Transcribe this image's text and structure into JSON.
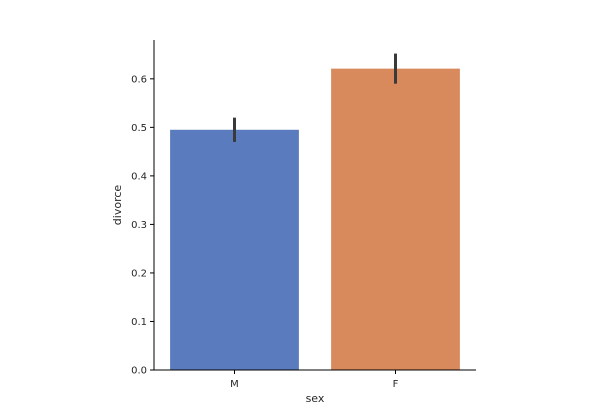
{
  "chart_data": {
    "type": "bar",
    "title": "",
    "xlabel": "sex",
    "ylabel": "divorce",
    "categories": [
      "M",
      "F"
    ],
    "values": [
      0.495,
      0.621
    ],
    "error_low": [
      0.47,
      0.59
    ],
    "error_high": [
      0.52,
      0.652
    ],
    "ylim": [
      0,
      0.68
    ],
    "yticks": [
      0.0,
      0.1,
      0.2,
      0.3,
      0.4,
      0.5,
      0.6
    ],
    "ytick_labels": [
      "0.0",
      "0.1",
      "0.2",
      "0.3",
      "0.4",
      "0.5",
      "0.6"
    ],
    "colors": [
      "#5a7bbd",
      "#d88a5d"
    ],
    "error_color": "#3a3a3a",
    "grid": false,
    "legend": "none"
  }
}
